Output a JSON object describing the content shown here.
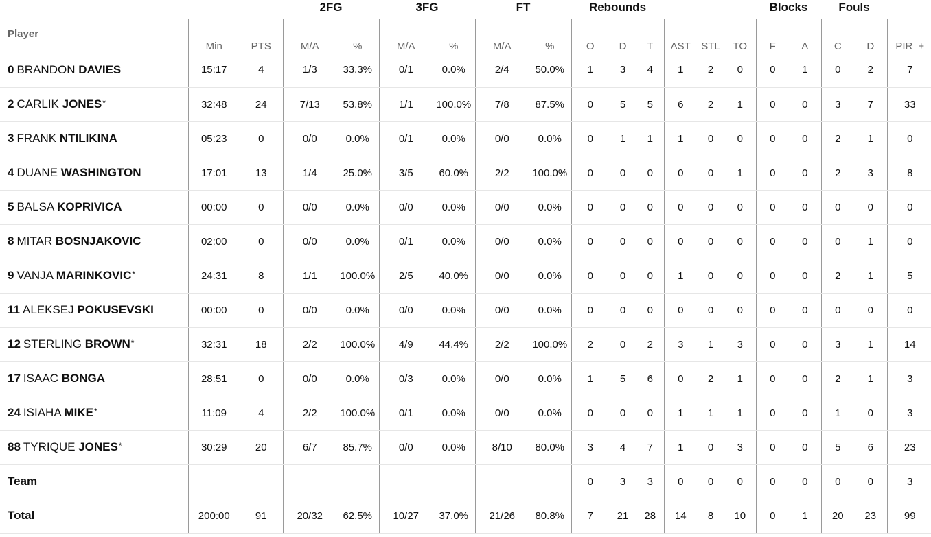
{
  "headers": {
    "groups": {
      "fg2": "2FG",
      "fg3": "3FG",
      "ft": "FT",
      "rebounds": "Rebounds",
      "blocks": "Blocks",
      "fouls": "Fouls"
    },
    "player": "Player",
    "cols": {
      "min": "Min",
      "pts": "PTS",
      "fg2_ma": "M/A",
      "fg2_pct": "%",
      "fg3_ma": "M/A",
      "fg3_pct": "%",
      "ft_ma": "M/A",
      "ft_pct": "%",
      "reb_o": "O",
      "reb_d": "D",
      "reb_t": "T",
      "ast": "AST",
      "stl": "STL",
      "to": "TO",
      "blk_f": "F",
      "blk_a": "A",
      "foul_c": "C",
      "foul_d": "D",
      "pir": "PIR",
      "expand": "+"
    }
  },
  "players": [
    {
      "num": "0",
      "first": "BRANDON",
      "last": "DAVIES",
      "star": "",
      "min": "15:17",
      "pts": "4",
      "fg2_ma": "1/3",
      "fg2_pct": "33.3%",
      "fg3_ma": "0/1",
      "fg3_pct": "0.0%",
      "ft_ma": "2/4",
      "ft_pct": "50.0%",
      "reb_o": "1",
      "reb_d": "3",
      "reb_t": "4",
      "ast": "1",
      "stl": "2",
      "to": "0",
      "blk_f": "0",
      "blk_a": "1",
      "foul_c": "0",
      "foul_d": "2",
      "pir": "7"
    },
    {
      "num": "2",
      "first": "CARLIK",
      "last": "JONES",
      "star": "*",
      "min": "32:48",
      "pts": "24",
      "fg2_ma": "7/13",
      "fg2_pct": "53.8%",
      "fg3_ma": "1/1",
      "fg3_pct": "100.0%",
      "ft_ma": "7/8",
      "ft_pct": "87.5%",
      "reb_o": "0",
      "reb_d": "5",
      "reb_t": "5",
      "ast": "6",
      "stl": "2",
      "to": "1",
      "blk_f": "0",
      "blk_a": "0",
      "foul_c": "3",
      "foul_d": "7",
      "pir": "33"
    },
    {
      "num": "3",
      "first": "FRANK",
      "last": "NTILIKINA",
      "star": "",
      "min": "05:23",
      "pts": "0",
      "fg2_ma": "0/0",
      "fg2_pct": "0.0%",
      "fg3_ma": "0/1",
      "fg3_pct": "0.0%",
      "ft_ma": "0/0",
      "ft_pct": "0.0%",
      "reb_o": "0",
      "reb_d": "1",
      "reb_t": "1",
      "ast": "1",
      "stl": "0",
      "to": "0",
      "blk_f": "0",
      "blk_a": "0",
      "foul_c": "2",
      "foul_d": "1",
      "pir": "0"
    },
    {
      "num": "4",
      "first": "DUANE",
      "last": "WASHINGTON",
      "star": "",
      "min": "17:01",
      "pts": "13",
      "fg2_ma": "1/4",
      "fg2_pct": "25.0%",
      "fg3_ma": "3/5",
      "fg3_pct": "60.0%",
      "ft_ma": "2/2",
      "ft_pct": "100.0%",
      "reb_o": "0",
      "reb_d": "0",
      "reb_t": "0",
      "ast": "0",
      "stl": "0",
      "to": "1",
      "blk_f": "0",
      "blk_a": "0",
      "foul_c": "2",
      "foul_d": "3",
      "pir": "8"
    },
    {
      "num": "5",
      "first": "BALSA",
      "last": "KOPRIVICA",
      "star": "",
      "min": "00:00",
      "pts": "0",
      "fg2_ma": "0/0",
      "fg2_pct": "0.0%",
      "fg3_ma": "0/0",
      "fg3_pct": "0.0%",
      "ft_ma": "0/0",
      "ft_pct": "0.0%",
      "reb_o": "0",
      "reb_d": "0",
      "reb_t": "0",
      "ast": "0",
      "stl": "0",
      "to": "0",
      "blk_f": "0",
      "blk_a": "0",
      "foul_c": "0",
      "foul_d": "0",
      "pir": "0"
    },
    {
      "num": "8",
      "first": "MITAR",
      "last": "BOSNJAKOVIC",
      "star": "",
      "min": "02:00",
      "pts": "0",
      "fg2_ma": "0/0",
      "fg2_pct": "0.0%",
      "fg3_ma": "0/1",
      "fg3_pct": "0.0%",
      "ft_ma": "0/0",
      "ft_pct": "0.0%",
      "reb_o": "0",
      "reb_d": "0",
      "reb_t": "0",
      "ast": "0",
      "stl": "0",
      "to": "0",
      "blk_f": "0",
      "blk_a": "0",
      "foul_c": "0",
      "foul_d": "1",
      "pir": "0"
    },
    {
      "num": "9",
      "first": "VANJA",
      "last": "MARINKOVIC",
      "star": "*",
      "min": "24:31",
      "pts": "8",
      "fg2_ma": "1/1",
      "fg2_pct": "100.0%",
      "fg3_ma": "2/5",
      "fg3_pct": "40.0%",
      "ft_ma": "0/0",
      "ft_pct": "0.0%",
      "reb_o": "0",
      "reb_d": "0",
      "reb_t": "0",
      "ast": "1",
      "stl": "0",
      "to": "0",
      "blk_f": "0",
      "blk_a": "0",
      "foul_c": "2",
      "foul_d": "1",
      "pir": "5"
    },
    {
      "num": "11",
      "first": "ALEKSEJ",
      "last": "POKUSEVSKI",
      "star": "",
      "min": "00:00",
      "pts": "0",
      "fg2_ma": "0/0",
      "fg2_pct": "0.0%",
      "fg3_ma": "0/0",
      "fg3_pct": "0.0%",
      "ft_ma": "0/0",
      "ft_pct": "0.0%",
      "reb_o": "0",
      "reb_d": "0",
      "reb_t": "0",
      "ast": "0",
      "stl": "0",
      "to": "0",
      "blk_f": "0",
      "blk_a": "0",
      "foul_c": "0",
      "foul_d": "0",
      "pir": "0"
    },
    {
      "num": "12",
      "first": "STERLING",
      "last": "BROWN",
      "star": "*",
      "min": "32:31",
      "pts": "18",
      "fg2_ma": "2/2",
      "fg2_pct": "100.0%",
      "fg3_ma": "4/9",
      "fg3_pct": "44.4%",
      "ft_ma": "2/2",
      "ft_pct": "100.0%",
      "reb_o": "2",
      "reb_d": "0",
      "reb_t": "2",
      "ast": "3",
      "stl": "1",
      "to": "3",
      "blk_f": "0",
      "blk_a": "0",
      "foul_c": "3",
      "foul_d": "1",
      "pir": "14"
    },
    {
      "num": "17",
      "first": "ISAAC",
      "last": "BONGA",
      "star": "",
      "min": "28:51",
      "pts": "0",
      "fg2_ma": "0/0",
      "fg2_pct": "0.0%",
      "fg3_ma": "0/3",
      "fg3_pct": "0.0%",
      "ft_ma": "0/0",
      "ft_pct": "0.0%",
      "reb_o": "1",
      "reb_d": "5",
      "reb_t": "6",
      "ast": "0",
      "stl": "2",
      "to": "1",
      "blk_f": "0",
      "blk_a": "0",
      "foul_c": "2",
      "foul_d": "1",
      "pir": "3"
    },
    {
      "num": "24",
      "first": "ISIAHA",
      "last": "MIKE",
      "star": "*",
      "min": "11:09",
      "pts": "4",
      "fg2_ma": "2/2",
      "fg2_pct": "100.0%",
      "fg3_ma": "0/1",
      "fg3_pct": "0.0%",
      "ft_ma": "0/0",
      "ft_pct": "0.0%",
      "reb_o": "0",
      "reb_d": "0",
      "reb_t": "0",
      "ast": "1",
      "stl": "1",
      "to": "1",
      "blk_f": "0",
      "blk_a": "0",
      "foul_c": "1",
      "foul_d": "0",
      "pir": "3"
    },
    {
      "num": "88",
      "first": "TYRIQUE",
      "last": "JONES",
      "star": "*",
      "min": "30:29",
      "pts": "20",
      "fg2_ma": "6/7",
      "fg2_pct": "85.7%",
      "fg3_ma": "0/0",
      "fg3_pct": "0.0%",
      "ft_ma": "8/10",
      "ft_pct": "80.0%",
      "reb_o": "3",
      "reb_d": "4",
      "reb_t": "7",
      "ast": "1",
      "stl": "0",
      "to": "3",
      "blk_f": "0",
      "blk_a": "0",
      "foul_c": "5",
      "foul_d": "6",
      "pir": "23"
    }
  ],
  "team": {
    "label": "Team",
    "min": "",
    "pts": "",
    "fg2_ma": "",
    "fg2_pct": "",
    "fg3_ma": "",
    "fg3_pct": "",
    "ft_ma": "",
    "ft_pct": "",
    "reb_o": "0",
    "reb_d": "3",
    "reb_t": "3",
    "ast": "0",
    "stl": "0",
    "to": "0",
    "blk_f": "0",
    "blk_a": "0",
    "foul_c": "0",
    "foul_d": "0",
    "pir": "3"
  },
  "total": {
    "label": "Total",
    "min": "200:00",
    "pts": "91",
    "fg2_ma": "20/32",
    "fg2_pct": "62.5%",
    "fg3_ma": "10/27",
    "fg3_pct": "37.0%",
    "ft_ma": "21/26",
    "ft_pct": "80.8%",
    "reb_o": "7",
    "reb_d": "21",
    "reb_t": "28",
    "ast": "14",
    "stl": "8",
    "to": "10",
    "blk_f": "0",
    "blk_a": "1",
    "foul_c": "20",
    "foul_d": "23",
    "pir": "99"
  },
  "colors": {
    "divider": "#9a9a9a",
    "row_line": "#e6e6e6",
    "muted_text": "#666666",
    "text": "#111111"
  }
}
